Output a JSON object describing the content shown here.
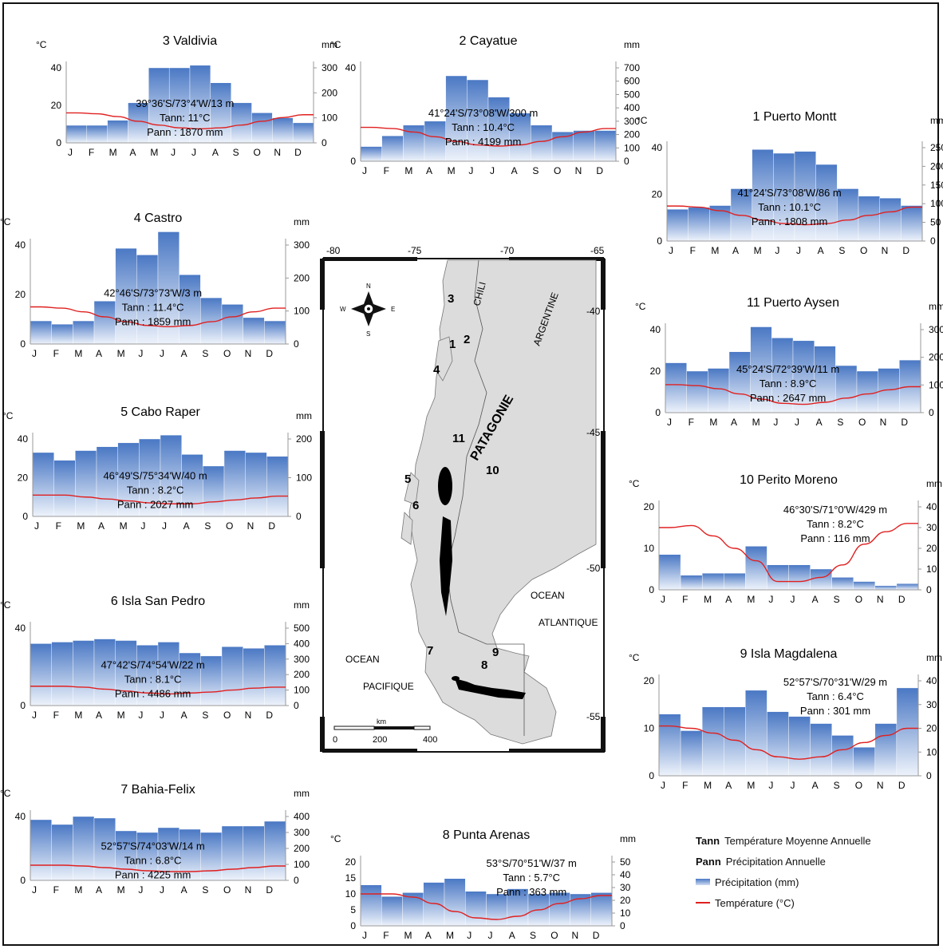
{
  "legend": {
    "tann_key": "Tann",
    "tann_desc": "Température Moyenne Annuelle",
    "pann_key": "Pann",
    "pann_desc": "Précipitation Annuelle",
    "prec_label": "Précipitation (mm)",
    "temp_label": "Température (°C)"
  },
  "map": {
    "lon_ticks": [
      "-80",
      "-75",
      "-70",
      "-65"
    ],
    "lat_ticks": [
      "-40",
      "-45",
      "-50",
      "-55"
    ],
    "compass": {
      "n": "N",
      "s": "S",
      "e": "E",
      "w": "W"
    },
    "labels": {
      "chili": "CHILI",
      "argentine": "ARGENTINE",
      "patagonie": "PATAGONIE",
      "ocean_atl_1": "OCEAN",
      "ocean_atl_2": "ATLANTIQUE",
      "ocean_pac_1": "OCEAN",
      "ocean_pac_2": "PACIFIQUE"
    },
    "station_numbers": [
      "1",
      "2",
      "3",
      "4",
      "5",
      "6",
      "7",
      "8",
      "9",
      "10",
      "11"
    ],
    "scale": {
      "unit": "km",
      "ticks": [
        "0",
        "200",
        "400"
      ]
    }
  },
  "chart_data": [
    {
      "type": "bar",
      "title": "3 Valdivia",
      "months": [
        "J",
        "F",
        "M",
        "A",
        "M",
        "J",
        "J",
        "A",
        "S",
        "O",
        "N",
        "D"
      ],
      "precip": [
        70,
        70,
        90,
        160,
        300,
        300,
        310,
        240,
        160,
        120,
        100,
        80
      ],
      "temp": [
        16,
        15.5,
        14,
        11.5,
        9.5,
        8,
        7.5,
        8,
        9.5,
        11.5,
        13.5,
        15
      ],
      "ylim_temp": [
        0,
        40
      ],
      "ytick_temp": [
        "0",
        "20",
        "40"
      ],
      "ylim_precip": [
        0,
        300
      ],
      "ytick_precip": [
        "0",
        "100",
        "200",
        "300"
      ],
      "ylabel_temp": "°C",
      "ylabel_precip": "mm",
      "info": [
        "39°36'S/73°4'W/13 m",
        "Tann: 11°C",
        "Pann : 1870 mm"
      ]
    },
    {
      "type": "bar",
      "title": "2 Cayatue",
      "months": [
        "J",
        "F",
        "M",
        "A",
        "M",
        "J",
        "J",
        "A",
        "S",
        "O",
        "N",
        "D"
      ],
      "precip": [
        110,
        190,
        270,
        300,
        640,
        610,
        480,
        360,
        270,
        220,
        230,
        230
      ],
      "temp": [
        14.5,
        14,
        12.5,
        10.5,
        8.5,
        7,
        6.5,
        7,
        8.5,
        10.5,
        12.5,
        14
      ],
      "ylim_temp": [
        0,
        40
      ],
      "ytick_temp": [
        "0",
        "40"
      ],
      "ylim_precip": [
        0,
        700
      ],
      "ytick_precip": [
        "0",
        "100",
        "200",
        "300",
        "400",
        "500",
        "600",
        "700"
      ],
      "ylabel_temp": "°C",
      "ylabel_precip": "mm",
      "info": [
        "41°24'S/73°08'W/300 m",
        "Tann : 10.4°C",
        "Pann : 4199 mm"
      ]
    },
    {
      "type": "bar",
      "title": "1 Puerto Montt",
      "months": [
        "J",
        "F",
        "M",
        "A",
        "M",
        "J",
        "J",
        "A",
        "S",
        "O",
        "N",
        "D"
      ],
      "precip": [
        85,
        90,
        95,
        140,
        245,
        235,
        240,
        205,
        140,
        120,
        115,
        95
      ],
      "temp": [
        15,
        14.5,
        13,
        11,
        9,
        7.5,
        7,
        7.5,
        9,
        11,
        12.5,
        14.5
      ],
      "ylim_temp": [
        0,
        40
      ],
      "ytick_temp": [
        "0",
        "20",
        "40"
      ],
      "ylim_precip": [
        0,
        250
      ],
      "ytick_precip": [
        "0",
        "50",
        "100",
        "150",
        "200",
        "250"
      ],
      "ylabel_temp": "°C",
      "ylabel_precip": "mm",
      "info": [
        "41°24'S/73°08'W/86 m",
        "Tann : 10.1°C",
        "Pann : 1808 mm"
      ]
    },
    {
      "type": "bar",
      "title": "4 Castro",
      "months": [
        "J",
        "F",
        "M",
        "A",
        "M",
        "J",
        "J",
        "A",
        "S",
        "O",
        "N",
        "D"
      ],
      "precip": [
        70,
        60,
        70,
        130,
        290,
        270,
        340,
        210,
        140,
        120,
        80,
        70
      ],
      "temp": [
        15,
        14.5,
        13,
        11,
        9,
        7.5,
        7,
        7.5,
        9,
        11,
        13,
        14.5
      ],
      "ylim_temp": [
        0,
        40
      ],
      "ytick_temp": [
        "0",
        "20",
        "40"
      ],
      "ylim_precip": [
        0,
        300
      ],
      "ytick_precip": [
        "0",
        "100",
        "200",
        "300"
      ],
      "ylabel_temp": "°C",
      "ylabel_precip": "mm",
      "info": [
        "42°46'S/73°73'W/3 m",
        "Tann : 11.4°C",
        "Pann : 1859 mm"
      ]
    },
    {
      "type": "bar",
      "title": "11 Puerto Aysen",
      "months": [
        "J",
        "F",
        "M",
        "A",
        "M",
        "J",
        "J",
        "A",
        "S",
        "O",
        "N",
        "D"
      ],
      "precip": [
        180,
        150,
        160,
        220,
        310,
        270,
        260,
        240,
        170,
        150,
        160,
        190
      ],
      "temp": [
        13.5,
        13,
        11.5,
        9,
        6.5,
        4.5,
        4,
        5,
        7,
        9,
        11,
        12.5
      ],
      "ylim_temp": [
        0,
        40
      ],
      "ytick_temp": [
        "0",
        "20",
        "40"
      ],
      "ylim_precip": [
        0,
        300
      ],
      "ytick_precip": [
        "0",
        "100",
        "200",
        "300"
      ],
      "ylabel_temp": "°C",
      "ylabel_precip": "mm",
      "info": [
        "45°24'S/72°39'W/11 m",
        "Tann : 8.9°C",
        "Pann : 2647 mm"
      ]
    },
    {
      "type": "bar",
      "title": "5 Cabo Raper",
      "months": [
        "J",
        "F",
        "M",
        "A",
        "M",
        "J",
        "J",
        "A",
        "S",
        "O",
        "N",
        "D"
      ],
      "precip": [
        165,
        145,
        170,
        180,
        190,
        200,
        210,
        160,
        130,
        170,
        165,
        155
      ],
      "temp": [
        11,
        11,
        10,
        9,
        8,
        7,
        6.5,
        6.5,
        7.5,
        8.5,
        9.5,
        10.5
      ],
      "ylim_temp": [
        0,
        40
      ],
      "ytick_temp": [
        "0",
        "20",
        "40"
      ],
      "ylim_precip": [
        0,
        200
      ],
      "ytick_precip": [
        "0",
        "100",
        "200"
      ],
      "ylabel_temp": "°C",
      "ylabel_precip": "mm",
      "info": [
        "46°49'S/75°34'W/40 m",
        "Tann : 8.2°C",
        "Pann : 2027 mm"
      ]
    },
    {
      "type": "bar",
      "title": "10 Perito Moreno",
      "months": [
        "J",
        "F",
        "M",
        "A",
        "M",
        "J",
        "J",
        "A",
        "S",
        "O",
        "N",
        "D"
      ],
      "precip": [
        17,
        7,
        8,
        8,
        21,
        12,
        12,
        10,
        6,
        4,
        2,
        3
      ],
      "temp": [
        15,
        15.5,
        13,
        10,
        7,
        2,
        2,
        3,
        6,
        11,
        14,
        16
      ],
      "ylim_temp": [
        0,
        20
      ],
      "ytick_temp": [
        "0",
        "10",
        "20"
      ],
      "ylim_precip": [
        0,
        40
      ],
      "ytick_precip": [
        "0",
        "10",
        "20",
        "30",
        "40"
      ],
      "ylabel_temp": "°C",
      "ylabel_precip": "mm",
      "info": [
        "46°30'S/71°0'W/429 m",
        "Tann : 8.2°C",
        "Pann : 116 mm"
      ]
    },
    {
      "type": "bar",
      "title": "6 Isla San Pedro",
      "months": [
        "J",
        "F",
        "M",
        "A",
        "M",
        "J",
        "J",
        "A",
        "S",
        "O",
        "N",
        "D"
      ],
      "precip": [
        400,
        410,
        420,
        430,
        420,
        390,
        410,
        340,
        320,
        380,
        370,
        390
      ],
      "temp": [
        10,
        10,
        9.5,
        8.5,
        7.5,
        6.5,
        6,
        6.5,
        7,
        8,
        9,
        9.5
      ],
      "ylim_temp": [
        0,
        40
      ],
      "ytick_temp": [
        "0",
        "40"
      ],
      "ylim_precip": [
        0,
        500
      ],
      "ytick_precip": [
        "0",
        "100",
        "200",
        "300",
        "400",
        "500"
      ],
      "ylabel_temp": "°C",
      "ylabel_precip": "mm",
      "info": [
        "47°42'S/74°54'W/22 m",
        "Tann : 8.1°C",
        "Pann : 4486 mm"
      ]
    },
    {
      "type": "bar",
      "title": "9 Isla Magdalena",
      "months": [
        "J",
        "F",
        "M",
        "A",
        "M",
        "J",
        "J",
        "A",
        "S",
        "O",
        "N",
        "D"
      ],
      "precip": [
        26,
        19,
        29,
        29,
        36,
        27,
        25,
        22,
        17,
        12,
        22,
        37
      ],
      "temp": [
        10.5,
        10,
        9,
        7.5,
        5.5,
        4,
        3.5,
        4,
        5.5,
        7,
        8.5,
        10
      ],
      "ylim_temp": [
        0,
        20
      ],
      "ytick_temp": [
        "0",
        "10",
        "20"
      ],
      "ylim_precip": [
        0,
        40
      ],
      "ytick_precip": [
        "0",
        "10",
        "20",
        "30",
        "40"
      ],
      "ylabel_temp": "°C",
      "ylabel_precip": "mm",
      "info": [
        "52°57'S/70°31'W/29 m",
        "Tann : 6.4°C",
        "Pann : 301 mm"
      ]
    },
    {
      "type": "bar",
      "title": "7 Bahia-Felix",
      "months": [
        "J",
        "F",
        "M",
        "A",
        "M",
        "J",
        "J",
        "A",
        "S",
        "O",
        "N",
        "D"
      ],
      "precip": [
        380,
        350,
        400,
        390,
        310,
        300,
        330,
        320,
        300,
        340,
        340,
        370
      ],
      "temp": [
        9.5,
        9.5,
        9,
        8,
        7,
        6,
        5.5,
        5.5,
        6,
        7,
        8,
        9
      ],
      "ylim_temp": [
        0,
        40
      ],
      "ytick_temp": [
        "0",
        "40"
      ],
      "ylim_precip": [
        0,
        400
      ],
      "ytick_precip": [
        "0",
        "100",
        "200",
        "300",
        "400"
      ],
      "ylabel_temp": "°C",
      "ylabel_precip": "mm",
      "info": [
        "52°57'S/74°03'W/14 m",
        "Tann : 6.8°C",
        "Pann : 4225 mm"
      ]
    },
    {
      "type": "bar",
      "title": "8 Punta Arenas",
      "months": [
        "J",
        "F",
        "M",
        "A",
        "M",
        "J",
        "J",
        "A",
        "S",
        "O",
        "N",
        "D"
      ],
      "precip": [
        32,
        23,
        26,
        34,
        37,
        27,
        25,
        29,
        25,
        26,
        25,
        26
      ],
      "temp": [
        10,
        10,
        9,
        7,
        4.5,
        2.5,
        2,
        3,
        5,
        7,
        8.5,
        9.5
      ],
      "ylim_temp": [
        0,
        20
      ],
      "ytick_temp": [
        "0",
        "5",
        "10",
        "15",
        "20"
      ],
      "ylim_precip": [
        0,
        50
      ],
      "ytick_precip": [
        "0",
        "10",
        "20",
        "30",
        "40",
        "50"
      ],
      "ylabel_temp": "°C",
      "ylabel_precip": "mm",
      "info": [
        "53°S/70°51'W/37 m",
        "Tann : 5.7°C",
        "Pann : 363 mm"
      ]
    }
  ]
}
